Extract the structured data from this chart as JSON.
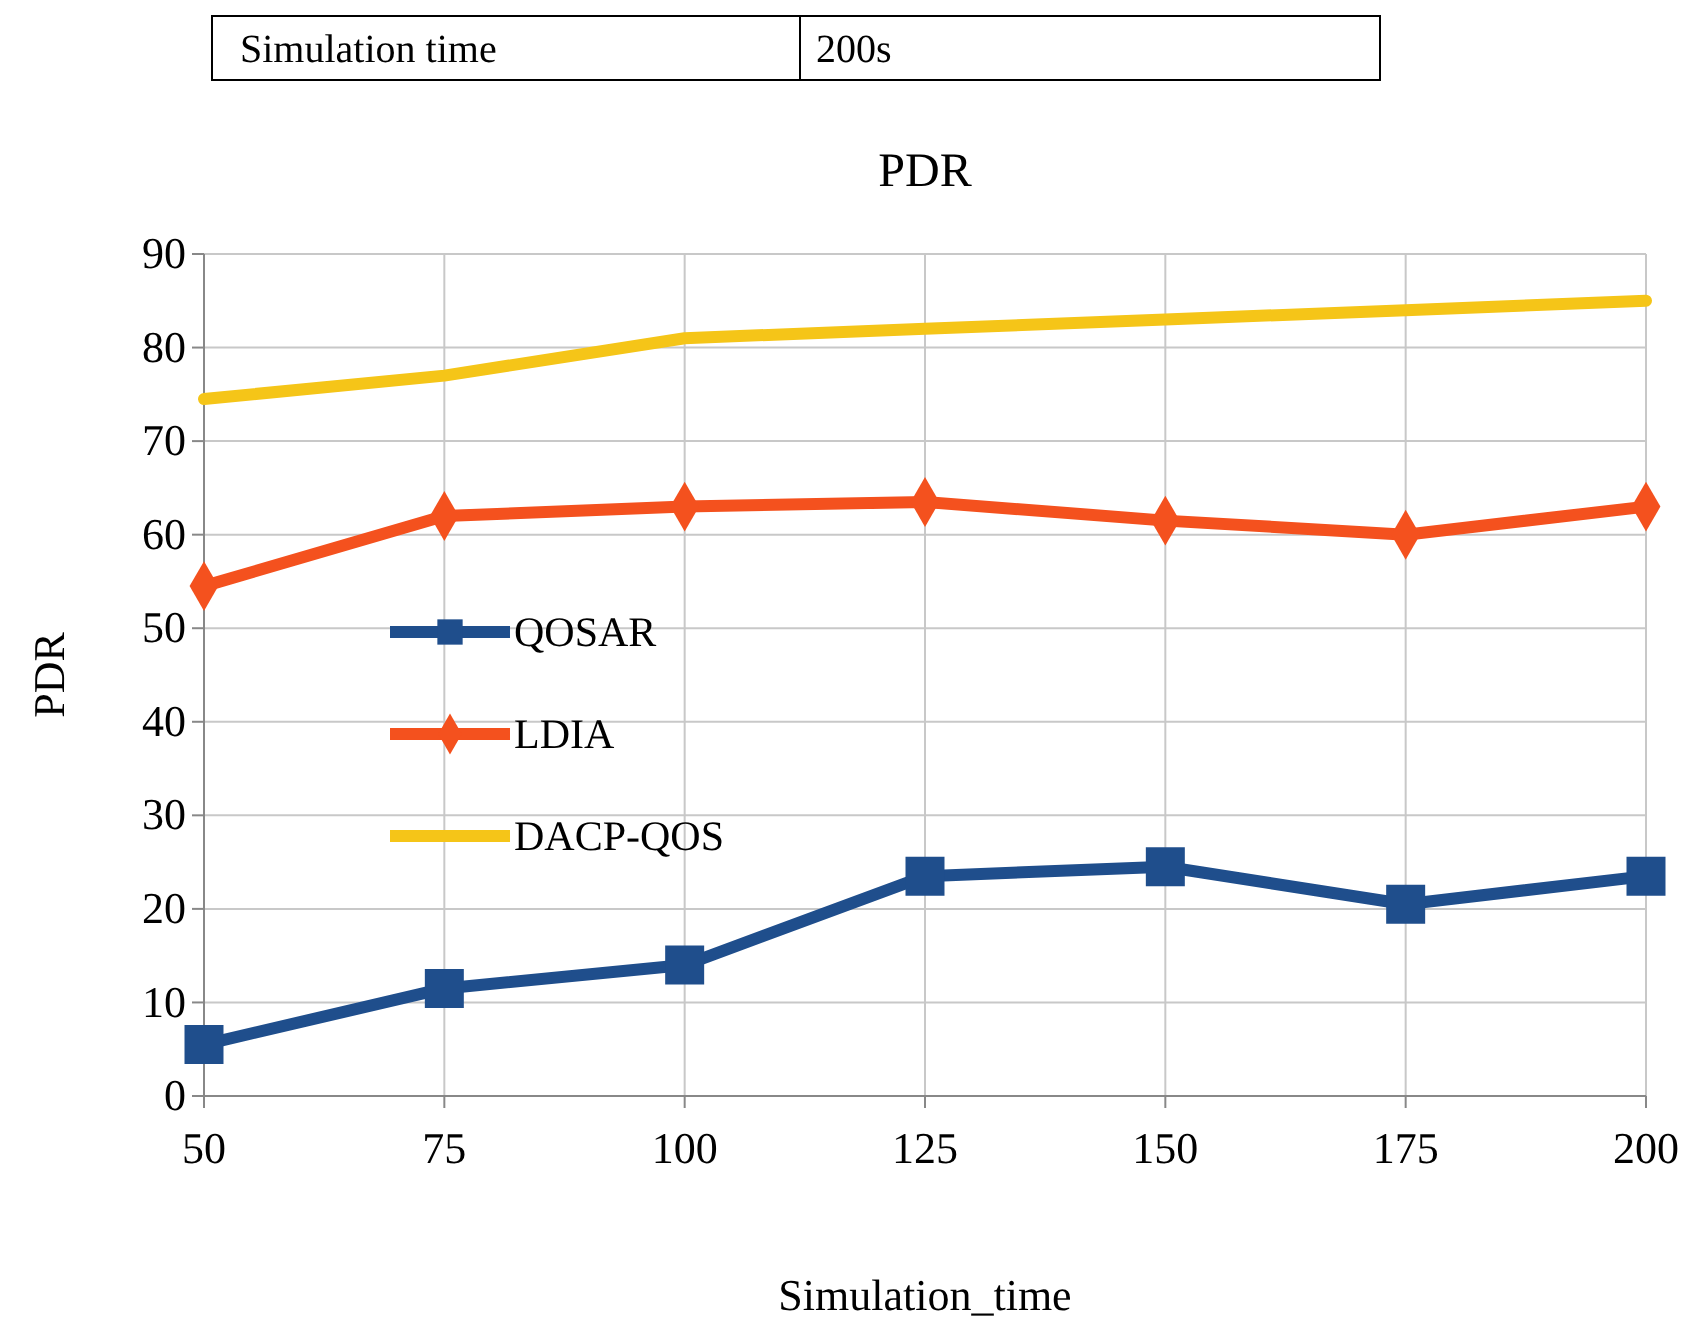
{
  "chart_data": {
    "type": "line",
    "title": "PDR",
    "xlabel": "Simulation_time",
    "ylabel": "PDR",
    "annotations": [
      "Simulation time",
      "200s"
    ],
    "x": [
      50,
      75,
      100,
      125,
      150,
      175,
      200
    ],
    "xlim": [
      50,
      200
    ],
    "xticks": [
      50,
      75,
      100,
      125,
      150,
      175,
      200
    ],
    "ylim": [
      0,
      90
    ],
    "yticks": [
      0,
      10,
      20,
      30,
      40,
      50,
      60,
      70,
      80,
      90
    ],
    "grid": true,
    "legend": "left",
    "series": [
      {
        "name": "QOSAR",
        "color": "#1f4e8c",
        "marker": "square",
        "values": [
          5.5,
          11.5,
          14,
          23.5,
          24.5,
          20.5,
          23.5
        ]
      },
      {
        "name": "LDIA",
        "color": "#f4511e",
        "marker": "diamond",
        "values": [
          54.5,
          62,
          63,
          63.5,
          61.5,
          60,
          63
        ]
      },
      {
        "name": "DACP-QOS",
        "color": "#f5c518",
        "marker": "none",
        "values": [
          74.5,
          77,
          81,
          82,
          83,
          84,
          85
        ]
      }
    ]
  }
}
